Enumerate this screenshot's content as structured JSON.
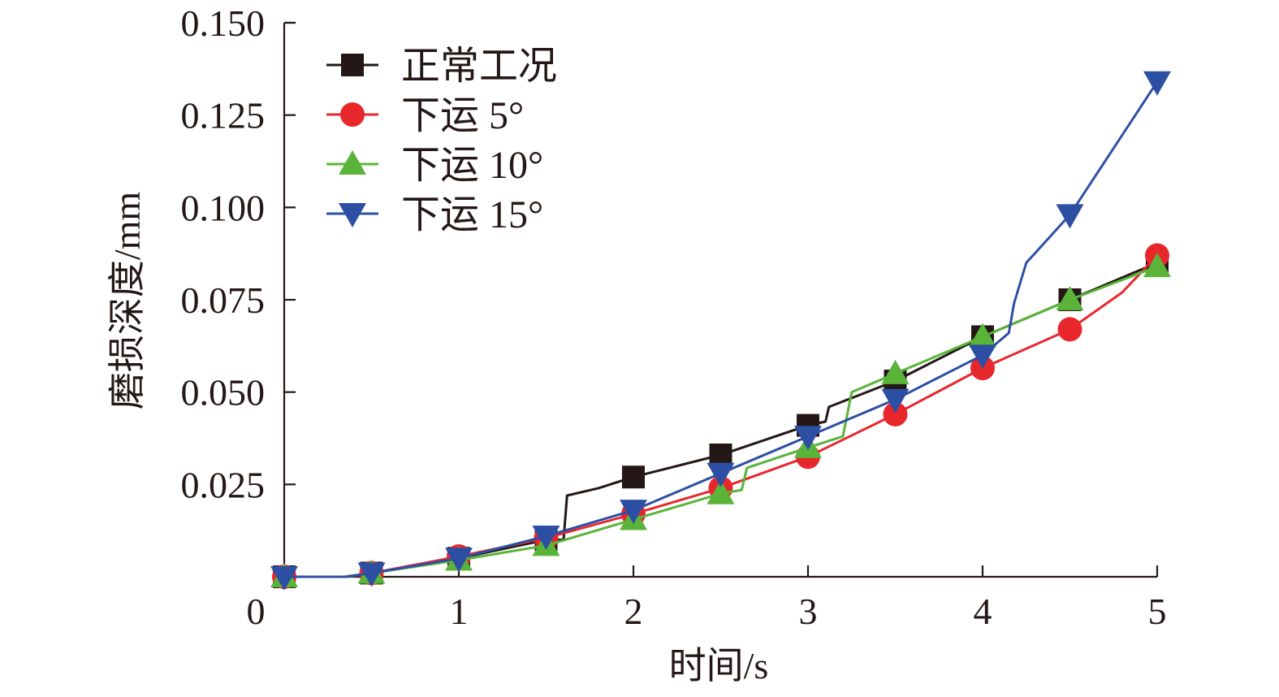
{
  "chart_data": {
    "type": "line",
    "title": "",
    "xlabel": "时间/s",
    "ylabel": "磨损深度/mm",
    "xlim": [
      0,
      5
    ],
    "ylim": [
      0,
      0.15
    ],
    "x_ticks": [
      1,
      2,
      3,
      4,
      5
    ],
    "y_ticks": [
      0.025,
      0.05,
      0.075,
      0.1,
      0.125,
      0.15
    ],
    "x_tick_labels": [
      "1",
      "2",
      "3",
      "4",
      "5"
    ],
    "y_tick_labels": [
      "0.025",
      "0.050",
      "0.075",
      "0.100",
      "0.125",
      "0.150"
    ],
    "origin_label": "0",
    "grid": false,
    "legend_position": "top-left",
    "series": [
      {
        "name": "正常工况",
        "color": "#231815",
        "marker": "square",
        "x": [
          0,
          0.35,
          0.5,
          1.0,
          1.5,
          1.6,
          1.62,
          1.8,
          2.0,
          2.5,
          3.0,
          3.1,
          3.12,
          3.5,
          4.0,
          4.5,
          5.0
        ],
        "y": [
          0.0,
          0.0,
          0.001,
          0.005,
          0.01,
          0.01,
          0.022,
          0.024,
          0.027,
          0.033,
          0.041,
          0.042,
          0.046,
          0.053,
          0.065,
          0.075,
          0.085
        ],
        "marker_x": [
          0,
          0.5,
          1.0,
          1.5,
          2.0,
          2.5,
          3.0,
          3.5,
          4.0,
          4.5,
          5.0
        ],
        "marker_y": [
          0.0,
          0.001,
          0.005,
          0.01,
          0.027,
          0.033,
          0.041,
          0.053,
          0.065,
          0.075,
          0.085
        ]
      },
      {
        "name": "下运 5°",
        "color": "#e8272d",
        "marker": "circle",
        "x": [
          0,
          0.35,
          0.5,
          1.0,
          1.5,
          2.0,
          2.5,
          3.0,
          3.5,
          4.0,
          4.5,
          4.8,
          5.0
        ],
        "y": [
          0.0,
          0.0,
          0.001,
          0.0055,
          0.0105,
          0.017,
          0.024,
          0.0325,
          0.044,
          0.0565,
          0.067,
          0.077,
          0.087
        ],
        "marker_x": [
          0,
          0.5,
          1.0,
          1.5,
          2.0,
          2.5,
          3.0,
          3.5,
          4.0,
          4.5,
          5.0
        ],
        "marker_y": [
          0.0,
          0.001,
          0.0055,
          0.0105,
          0.017,
          0.024,
          0.0325,
          0.044,
          0.0565,
          0.067,
          0.087
        ]
      },
      {
        "name": "下运 10°",
        "color": "#5ab43a",
        "marker": "triangle-up",
        "x": [
          0,
          0.35,
          0.5,
          1.0,
          1.5,
          2.0,
          2.5,
          2.62,
          2.65,
          3.0,
          3.2,
          3.25,
          3.5,
          4.0,
          4.5,
          5.0
        ],
        "y": [
          0.0,
          0.0,
          0.001,
          0.0045,
          0.0085,
          0.0155,
          0.0225,
          0.0235,
          0.0295,
          0.035,
          0.038,
          0.05,
          0.055,
          0.065,
          0.075,
          0.084
        ],
        "marker_x": [
          0,
          0.5,
          1.0,
          1.5,
          2.0,
          2.5,
          3.0,
          3.5,
          4.0,
          4.5,
          5.0
        ],
        "marker_y": [
          0.0,
          0.001,
          0.0045,
          0.0085,
          0.0155,
          0.0225,
          0.035,
          0.055,
          0.065,
          0.075,
          0.084
        ]
      },
      {
        "name": "下运 15°",
        "color": "#2d4fa3",
        "marker": "triangle-down",
        "x": [
          0,
          0.35,
          0.5,
          1.0,
          1.5,
          2.0,
          2.5,
          3.0,
          3.5,
          4.0,
          4.15,
          4.18,
          4.25,
          4.5,
          5.0
        ],
        "y": [
          0.0,
          0.0,
          0.001,
          0.005,
          0.011,
          0.018,
          0.028,
          0.038,
          0.048,
          0.06,
          0.066,
          0.074,
          0.085,
          0.098,
          0.134
        ],
        "marker_x": [
          0,
          0.5,
          1.0,
          1.5,
          2.0,
          2.5,
          3.0,
          3.5,
          4.0,
          4.5,
          5.0
        ],
        "marker_y": [
          0.0,
          0.001,
          0.005,
          0.011,
          0.018,
          0.028,
          0.038,
          0.048,
          0.06,
          0.098,
          0.134
        ]
      }
    ]
  }
}
